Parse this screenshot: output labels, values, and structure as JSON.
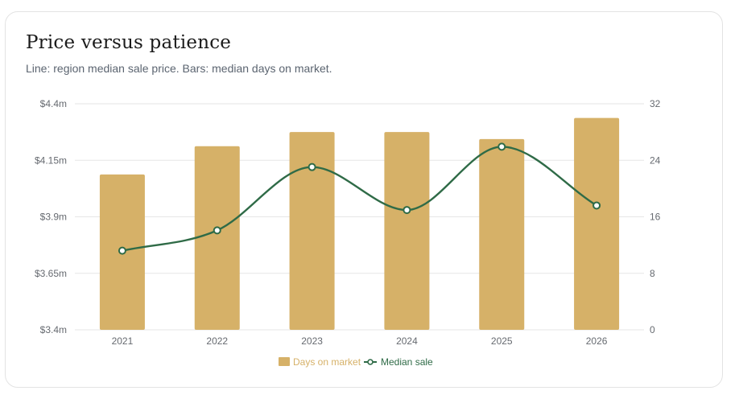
{
  "header": {
    "title": "Price versus patience",
    "subtitle": "Line: region median sale price. Bars: median days on market."
  },
  "colors": {
    "bar": "#d6b168",
    "line": "#2f6b47",
    "grid": "#e6e6e6",
    "axis_text": "#666a70"
  },
  "legend": {
    "bars_label": "Days on market",
    "line_label": "Median sale"
  },
  "chart_data": {
    "type": "bar",
    "categories": [
      "2021",
      "2022",
      "2023",
      "2024",
      "2025",
      "2026"
    ],
    "series": [
      {
        "name": "Days on market",
        "type": "bar",
        "axis": "right",
        "values": [
          22,
          26,
          28,
          28,
          27,
          30
        ]
      },
      {
        "name": "Median sale",
        "type": "line",
        "axis": "left",
        "values": [
          3.75,
          3.84,
          4.12,
          3.93,
          4.21,
          3.95
        ]
      }
    ],
    "y_left": {
      "ylim": [
        3.4,
        4.4
      ],
      "ticks": [
        3.4,
        3.65,
        3.9,
        4.15,
        4.4
      ],
      "tick_labels": [
        "$3.4m",
        "$3.65m",
        "$3.9m",
        "$4.15m",
        "$4.4m"
      ]
    },
    "y_right": {
      "ylim": [
        0,
        32
      ],
      "ticks": [
        0,
        8,
        16,
        24,
        32
      ],
      "tick_labels": [
        "0",
        "8",
        "16",
        "24",
        "32"
      ]
    },
    "grid": true,
    "legend_position": "bottom"
  }
}
